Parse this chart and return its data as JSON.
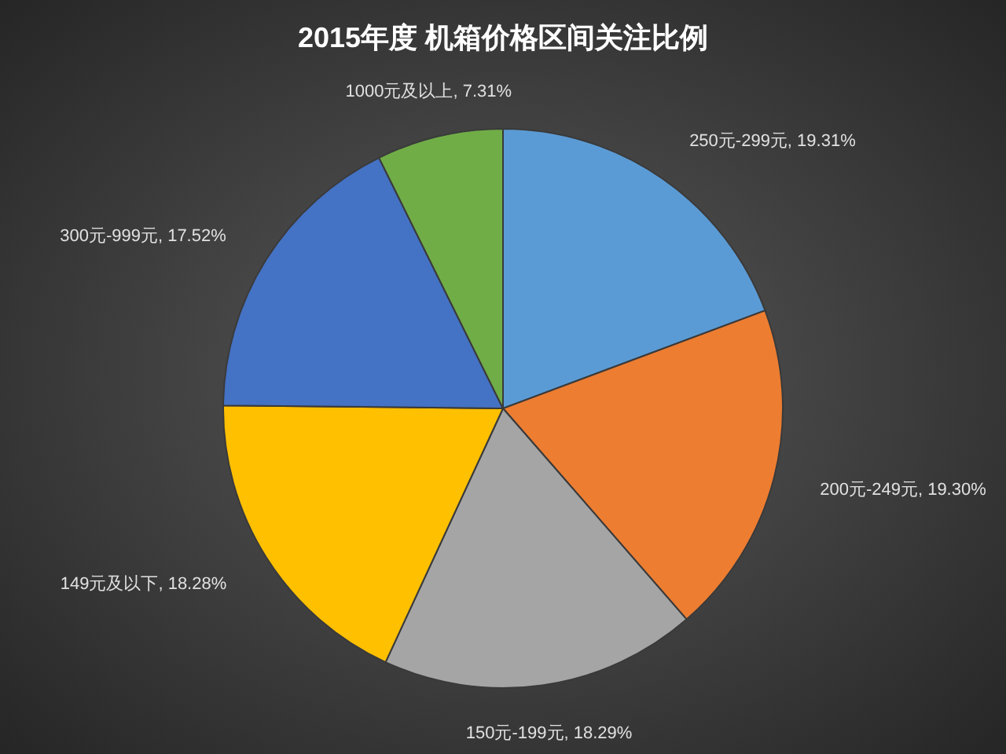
{
  "chart_data": {
    "type": "pie",
    "title": "2015年度 机箱价格区间关注比例",
    "categories": [
      "250元-299元",
      "200元-249元",
      "150元-199元",
      "149元及以下",
      "300元-999元",
      "1000元及以上"
    ],
    "values": [
      19.31,
      19.3,
      18.29,
      18.28,
      17.52,
      7.31
    ],
    "colors": [
      "#5b9bd5",
      "#ed7d31",
      "#a5a5a5",
      "#ffc000",
      "#4472c4",
      "#70ad47"
    ],
    "value_labels": [
      ", 19.31%",
      ", 19.30%",
      ", 18.29%",
      ", 18.28%",
      ", 17.52%",
      ", 7.31%"
    ]
  }
}
